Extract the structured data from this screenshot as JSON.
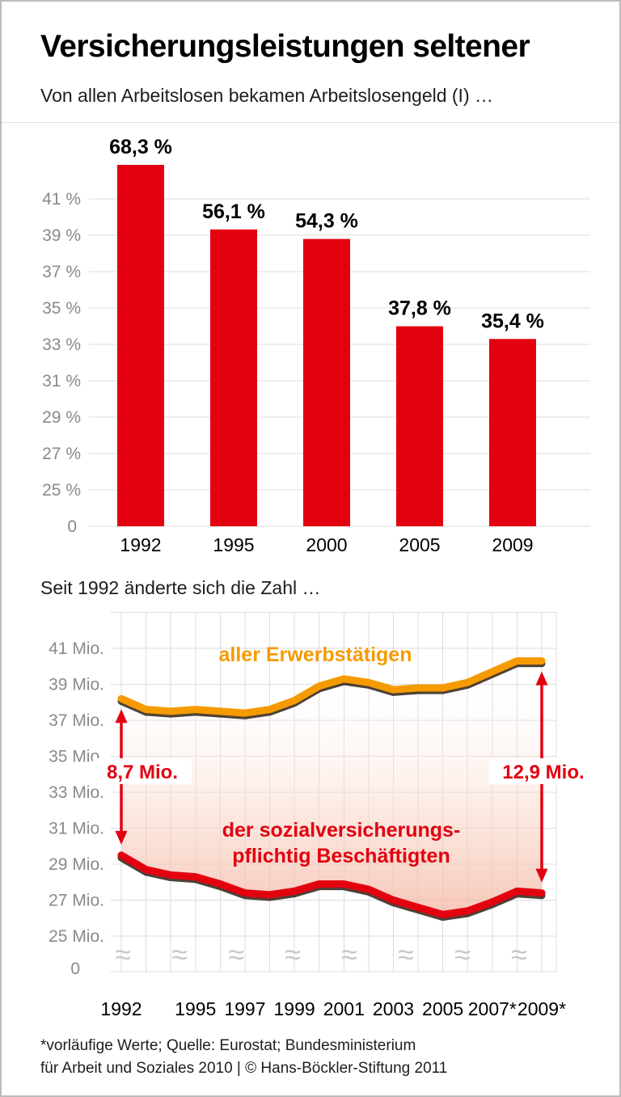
{
  "page": {
    "title": "Versicherungsleistungen seltener",
    "footer_line1": "*vorläufige Werte; Quelle: Eurostat; Bundesministerium",
    "footer_line2": "für Arbeit und Soziales 2010 | © Hans-Böckler-Stiftung 2011"
  },
  "colors": {
    "red": "#e3000f",
    "orange": "#f59b00",
    "axis_text": "#8a8a8a",
    "grid": "#dcdcdc",
    "black_text": "#000000",
    "area_pink": "#f3b09c",
    "page_border": "#bcbcbc"
  },
  "chart_data": [
    {
      "type": "bar",
      "title": "Von allen Arbeitslosen bekamen Arbeitslosengeld (I) …",
      "categories": [
        "1992",
        "1995",
        "2000",
        "2005",
        "2009"
      ],
      "values": [
        68.3,
        56.1,
        54.3,
        37.8,
        35.4
      ],
      "value_labels": [
        "68,3 %",
        "56,1 %",
        "54,3 %",
        "37,8 %",
        "35,4 %"
      ],
      "y_tick_labels": [
        "41 %",
        "39 %",
        "37 %",
        "35 %",
        "33 %",
        "31 %",
        "29 %",
        "27 %",
        "25 %",
        "0"
      ],
      "xlabel": "",
      "ylabel": "",
      "bar_color": "#e3000f",
      "grid": true,
      "note": "axis labels 25–41 % with break to 0 as in original; bar heights proportional to values"
    },
    {
      "type": "line",
      "title": "Seit 1992 änderte sich die Zahl …",
      "x": [
        1992,
        1993,
        1994,
        1995,
        1996,
        1997,
        1998,
        1999,
        2000,
        2001,
        2002,
        2003,
        2004,
        2005,
        2006,
        2007,
        2008,
        2009
      ],
      "x_tick_positions": [
        1992,
        1995,
        1997,
        1999,
        2001,
        2003,
        2005,
        2007,
        2009
      ],
      "x_tick_labels": [
        "1992",
        "1995",
        "1997",
        "1999",
        "2001",
        "2003",
        "2005",
        "2007*",
        "2009*"
      ],
      "y_tick_labels": [
        "41 Mio.",
        "39 Mio.",
        "37 Mio.",
        "35 Mio.",
        "33 Mio.",
        "31 Mio.",
        "29 Mio.",
        "27 Mio.",
        "25 Mio.",
        "0"
      ],
      "ylim": [
        25,
        41
      ],
      "grid": true,
      "axis_break": true,
      "series": [
        {
          "name": "aller Erwerbstätigen",
          "color": "#f59b00",
          "values": [
            38.2,
            37.6,
            37.5,
            37.6,
            37.5,
            37.4,
            37.6,
            38.1,
            38.9,
            39.3,
            39.1,
            38.7,
            38.8,
            38.8,
            39.1,
            39.7,
            40.3,
            40.3
          ]
        },
        {
          "name": "der sozialversicherungspflichtig Beschäftigten",
          "label_line1": "der sozialversicherungs-",
          "label_line2": "pflichtig Beschäftigten",
          "color": "#e3000f",
          "values": [
            29.5,
            28.7,
            28.4,
            28.3,
            27.9,
            27.4,
            27.3,
            27.5,
            27.9,
            27.9,
            27.6,
            27.0,
            26.6,
            26.2,
            26.4,
            26.9,
            27.5,
            27.4
          ]
        }
      ],
      "annotations": [
        {
          "label": "8,7 Mio.",
          "year": 1992,
          "value": 8.7,
          "label_dx": 26
        },
        {
          "label": "12,9 Mio.",
          "year": 2009,
          "value": 12.9,
          "label_dx": 2
        }
      ]
    }
  ]
}
